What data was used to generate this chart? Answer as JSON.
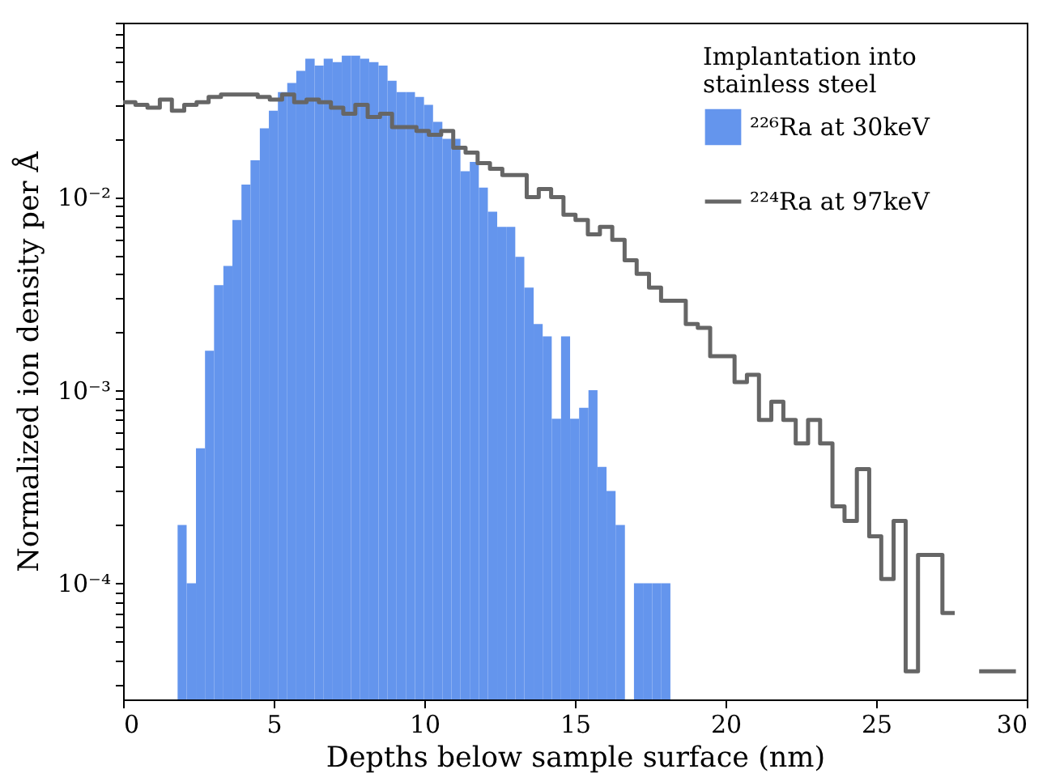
{
  "chart_data": {
    "type": "histogram",
    "xlabel": "Depths below sample surface (nm)",
    "ylabel": "Normalized ion density per Å",
    "legend_title": "Implantation into stainless steel",
    "legend": "top right",
    "log": "y",
    "xlim": [
      0,
      30
    ],
    "xticks": [
      0,
      5,
      10,
      15,
      20,
      25,
      30
    ],
    "ylim": [
      2.5e-05,
      0.08
    ],
    "yticks": [
      {
        "value": 3e-05,
        "label": null
      },
      {
        "value": 4e-05,
        "label": null
      },
      {
        "value": 5e-05,
        "label": null
      },
      {
        "value": 6e-05,
        "label": null
      },
      {
        "value": 7e-05,
        "label": null
      },
      {
        "value": 8e-05,
        "label": null
      },
      {
        "value": 9e-05,
        "label": null
      },
      {
        "value": 0.0001,
        "label": "10⁻⁴"
      },
      {
        "value": 0.0002,
        "label": null
      },
      {
        "value": 0.0003,
        "label": null
      },
      {
        "value": 0.0004,
        "label": null
      },
      {
        "value": 0.0005,
        "label": null
      },
      {
        "value": 0.0006,
        "label": null
      },
      {
        "value": 0.0007,
        "label": null
      },
      {
        "value": 0.0008,
        "label": null
      },
      {
        "value": 0.0009,
        "label": null
      },
      {
        "value": 0.001,
        "label": "10⁻³"
      },
      {
        "value": 0.002,
        "label": null
      },
      {
        "value": 0.003,
        "label": null
      },
      {
        "value": 0.004,
        "label": null
      },
      {
        "value": 0.005,
        "label": null
      },
      {
        "value": 0.006,
        "label": null
      },
      {
        "value": 0.007,
        "label": null
      },
      {
        "value": 0.008,
        "label": null
      },
      {
        "value": 0.009,
        "label": null
      },
      {
        "value": 0.01,
        "label": "10⁻²"
      },
      {
        "value": 0.02,
        "label": null
      },
      {
        "value": 0.03,
        "label": null
      },
      {
        "value": 0.04,
        "label": null
      },
      {
        "value": 0.05,
        "label": null
      },
      {
        "value": 0.06,
        "label": null
      },
      {
        "value": 0.07,
        "label": null
      },
      {
        "value": 0.08,
        "label": null
      }
    ],
    "series": [
      {
        "name": "²²⁶Ra at 30keV",
        "color": "#6495ed",
        "bins": [
          1.81,
          2.11,
          2.42,
          2.72,
          3.02,
          3.33,
          3.63,
          3.93,
          4.23,
          4.54,
          4.84,
          5.14,
          5.45,
          5.75,
          6.05,
          6.36,
          6.66,
          6.96,
          7.26,
          7.57,
          7.87,
          8.17,
          8.48,
          8.78,
          9.08,
          9.39,
          9.69,
          9.99,
          10.29,
          10.6,
          10.9,
          11.2,
          11.51,
          11.81,
          12.11,
          12.42,
          12.72,
          13.02,
          13.32,
          13.63,
          13.93,
          14.23,
          14.54,
          14.84,
          15.14,
          15.45,
          15.75,
          16.05,
          16.35,
          16.66,
          16.96,
          17.26,
          17.57,
          17.87,
          18.17
        ],
        "values": [
          0.0002,
          0.0001,
          0.0005,
          0.0016,
          0.0035,
          0.0044,
          0.0076,
          0.0116,
          0.0155,
          0.0227,
          0.028,
          0.035,
          0.039,
          0.045,
          0.052,
          0.048,
          0.052,
          0.05,
          0.054,
          0.054,
          0.052,
          0.05,
          0.048,
          0.04,
          0.035,
          0.035,
          0.033,
          0.03,
          0.0245,
          0.02,
          0.02,
          0.0136,
          0.0152,
          0.0112,
          0.0084,
          0.007,
          0.007,
          0.0049,
          0.0034,
          0.0022,
          0.0019,
          0.00071,
          0.0019,
          0.00071,
          0.00081,
          0.001,
          0.0004,
          0.0003,
          0.0002,
          null,
          0.0001,
          0.0001,
          0.0001,
          0.0001
        ]
      },
      {
        "name": "²²⁴Ra at 97keV",
        "color": "#666666",
        "type": "step",
        "x": [
          0,
          0.41,
          0.81,
          1.22,
          1.62,
          2.03,
          2.44,
          2.84,
          3.25,
          3.65,
          4.06,
          4.47,
          4.87,
          5.28,
          5.68,
          6.09,
          6.5,
          6.9,
          7.31,
          7.71,
          8.12,
          8.53,
          8.93,
          9.34,
          9.74,
          10.15,
          10.56,
          10.96,
          11.37,
          11.77,
          12.18,
          12.59,
          12.99,
          13.4,
          13.8,
          14.21,
          14.62,
          15.02,
          15.43,
          15.83,
          16.24,
          16.65,
          17.05,
          17.46,
          17.86,
          18.27,
          18.68,
          19.08,
          19.49,
          19.89,
          20.3,
          20.71,
          21.11,
          21.52,
          21.92,
          22.33,
          22.74,
          23.14,
          23.55,
          23.95,
          24.36,
          24.77,
          25.17,
          25.58,
          25.98,
          26.39,
          26.8,
          27.2,
          27.61,
          28.01,
          28.42,
          28.83,
          29.23,
          29.64
        ],
        "values": [
          0.031,
          0.03,
          0.029,
          0.032,
          0.028,
          0.03,
          0.031,
          0.033,
          0.034,
          0.034,
          0.034,
          0.033,
          0.032,
          0.034,
          0.031,
          0.032,
          0.031,
          0.029,
          0.027,
          0.03,
          0.026,
          0.027,
          0.023,
          0.023,
          0.022,
          0.021,
          0.022,
          0.018,
          0.017,
          0.015,
          0.014,
          0.013,
          0.013,
          0.01,
          0.011,
          0.01,
          0.0081,
          0.0076,
          0.0064,
          0.007,
          0.006,
          0.0047,
          0.004,
          0.0034,
          0.0029,
          0.0029,
          0.0022,
          0.0021,
          0.0015,
          0.0015,
          0.0011,
          0.0012,
          0.0007,
          0.00087,
          0.0007,
          0.00053,
          0.0007,
          0.00053,
          0.00025,
          0.00021,
          0.00039,
          0.000175,
          0.000105,
          0.00021,
          3.5e-05,
          0.00014,
          0.00014,
          7e-05,
          7e-05,
          null,
          3.5e-05,
          3.5e-05,
          3.5e-05,
          3.5e-05
        ]
      }
    ]
  }
}
